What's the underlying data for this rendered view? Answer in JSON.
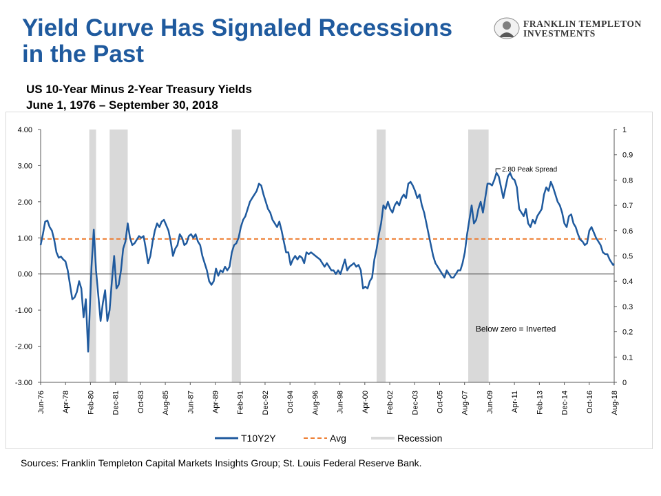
{
  "header": {
    "title_line1": "Yield Curve Has Signaled Recessions",
    "title_line2": "in the Past",
    "subtitle_line1": "US 10-Year Minus 2-Year Treasury Yields",
    "subtitle_line2": "June 1, 1976 – September 30, 2018"
  },
  "logo": {
    "line1": "FRANKLIN TEMPLETON",
    "line2": "INVESTMENTS",
    "icon": "franklin-portrait-icon"
  },
  "footer": {
    "sources": "Sources: Franklin Templeton Capital Markets Insights Group; St. Louis Federal Reserve Bank."
  },
  "colors": {
    "title": "#1f5a9e",
    "series": "#1f5a9e",
    "avg": "#ed7d31",
    "recession": "#d9d9d9",
    "zero_line": "#404040"
  },
  "chart_data": {
    "type": "line",
    "xlim": [
      "1976-06",
      "2018-09"
    ],
    "ylim": [
      -3,
      4
    ],
    "y_ticks": [
      "4.00",
      "3.00",
      "2.00",
      "1.00",
      "0.00",
      "-1.00",
      "-2.00",
      "-3.00"
    ],
    "y2lim": [
      0,
      1
    ],
    "y2_ticks": [
      "1",
      "0.9",
      "0.8",
      "0.7",
      "0.6",
      "0.5",
      "0.4",
      "0.3",
      "0.2",
      "0.1",
      "0"
    ],
    "x_tick_labels": [
      "Jun-76",
      "Apr-78",
      "Feb-80",
      "Dec-81",
      "Oct-83",
      "Aug-85",
      "Jun-87",
      "Apr-89",
      "Feb-91",
      "Dec-92",
      "Oct-94",
      "Aug-96",
      "Jun-98",
      "Apr-00",
      "Feb-02",
      "Dec-03",
      "Oct-05",
      "Aug-07",
      "Jun-09",
      "Apr-11",
      "Feb-13",
      "Dec-14",
      "Oct-16",
      "Aug-18"
    ],
    "legend": [
      "T10Y2Y",
      "Avg",
      "Recession"
    ],
    "legend_position": "bottom",
    "grid": false,
    "avg_value": 0.97,
    "recessions": [
      [
        "1980-01",
        "1980-07"
      ],
      [
        "1981-07",
        "1982-11"
      ],
      [
        "1990-07",
        "1991-03"
      ],
      [
        "2001-03",
        "2001-11"
      ],
      [
        "2007-12",
        "2009-06"
      ]
    ],
    "series": [
      {
        "name": "T10Y2Y",
        "points": [
          [
            "1976-06",
            0.8
          ],
          [
            "1976-08",
            1.1
          ],
          [
            "1976-10",
            1.45
          ],
          [
            "1976-12",
            1.48
          ],
          [
            "1977-02",
            1.3
          ],
          [
            "1977-04",
            1.2
          ],
          [
            "1977-06",
            0.95
          ],
          [
            "1977-08",
            0.6
          ],
          [
            "1977-10",
            0.45
          ],
          [
            "1977-12",
            0.48
          ],
          [
            "1978-02",
            0.4
          ],
          [
            "1978-04",
            0.35
          ],
          [
            "1978-06",
            0.1
          ],
          [
            "1978-08",
            -0.3
          ],
          [
            "1978-10",
            -0.7
          ],
          [
            "1978-12",
            -0.65
          ],
          [
            "1979-02",
            -0.5
          ],
          [
            "1979-04",
            -0.2
          ],
          [
            "1979-06",
            -0.4
          ],
          [
            "1979-08",
            -1.2
          ],
          [
            "1979-10",
            -0.7
          ],
          [
            "1979-12",
            -2.15
          ],
          [
            "1980-03",
            0.2
          ],
          [
            "1980-05",
            1.23
          ],
          [
            "1980-07",
            0.1
          ],
          [
            "1980-09",
            -0.6
          ],
          [
            "1980-11",
            -1.3
          ],
          [
            "1981-01",
            -0.8
          ],
          [
            "1981-03",
            -0.45
          ],
          [
            "1981-05",
            -1.3
          ],
          [
            "1981-07",
            -1.0
          ],
          [
            "1981-09",
            -0.2
          ],
          [
            "1981-11",
            0.5
          ],
          [
            "1982-01",
            -0.4
          ],
          [
            "1982-03",
            -0.3
          ],
          [
            "1982-05",
            0.1
          ],
          [
            "1982-07",
            0.7
          ],
          [
            "1982-09",
            0.9
          ],
          [
            "1982-11",
            1.4
          ],
          [
            "1983-01",
            1.0
          ],
          [
            "1983-03",
            0.8
          ],
          [
            "1983-05",
            0.85
          ],
          [
            "1983-07",
            0.95
          ],
          [
            "1983-09",
            1.05
          ],
          [
            "1983-11",
            1.0
          ],
          [
            "1984-01",
            1.05
          ],
          [
            "1984-03",
            0.7
          ],
          [
            "1984-05",
            0.3
          ],
          [
            "1984-07",
            0.5
          ],
          [
            "1984-09",
            0.9
          ],
          [
            "1984-11",
            1.2
          ],
          [
            "1985-01",
            1.4
          ],
          [
            "1985-03",
            1.3
          ],
          [
            "1985-05",
            1.45
          ],
          [
            "1985-07",
            1.5
          ],
          [
            "1985-09",
            1.35
          ],
          [
            "1985-11",
            1.2
          ],
          [
            "1986-01",
            0.9
          ],
          [
            "1986-03",
            0.5
          ],
          [
            "1986-05",
            0.7
          ],
          [
            "1986-07",
            0.8
          ],
          [
            "1986-09",
            1.1
          ],
          [
            "1986-11",
            1.0
          ],
          [
            "1987-01",
            0.8
          ],
          [
            "1987-03",
            0.85
          ],
          [
            "1987-05",
            1.05
          ],
          [
            "1987-07",
            1.1
          ],
          [
            "1987-09",
            1.0
          ],
          [
            "1987-11",
            1.1
          ],
          [
            "1988-01",
            0.9
          ],
          [
            "1988-03",
            0.8
          ],
          [
            "1988-05",
            0.5
          ],
          [
            "1988-07",
            0.3
          ],
          [
            "1988-09",
            0.1
          ],
          [
            "1988-11",
            -0.2
          ],
          [
            "1989-01",
            -0.3
          ],
          [
            "1989-03",
            -0.2
          ],
          [
            "1989-05",
            0.15
          ],
          [
            "1989-07",
            -0.05
          ],
          [
            "1989-09",
            0.1
          ],
          [
            "1989-11",
            0.05
          ],
          [
            "1990-01",
            0.2
          ],
          [
            "1990-03",
            0.1
          ],
          [
            "1990-05",
            0.2
          ],
          [
            "1990-07",
            0.6
          ],
          [
            "1990-09",
            0.8
          ],
          [
            "1990-11",
            0.85
          ],
          [
            "1991-01",
            1.0
          ],
          [
            "1991-03",
            1.3
          ],
          [
            "1991-05",
            1.5
          ],
          [
            "1991-07",
            1.6
          ],
          [
            "1991-09",
            1.8
          ],
          [
            "1991-11",
            2.0
          ],
          [
            "1992-01",
            2.1
          ],
          [
            "1992-03",
            2.2
          ],
          [
            "1992-05",
            2.3
          ],
          [
            "1992-07",
            2.5
          ],
          [
            "1992-09",
            2.45
          ],
          [
            "1992-11",
            2.2
          ],
          [
            "1993-01",
            2.0
          ],
          [
            "1993-03",
            1.8
          ],
          [
            "1993-05",
            1.7
          ],
          [
            "1993-07",
            1.5
          ],
          [
            "1993-09",
            1.4
          ],
          [
            "1993-11",
            1.3
          ],
          [
            "1994-01",
            1.45
          ],
          [
            "1994-03",
            1.2
          ],
          [
            "1994-05",
            0.9
          ],
          [
            "1994-07",
            0.6
          ],
          [
            "1994-09",
            0.6
          ],
          [
            "1994-11",
            0.25
          ],
          [
            "1995-01",
            0.4
          ],
          [
            "1995-03",
            0.5
          ],
          [
            "1995-05",
            0.4
          ],
          [
            "1995-07",
            0.5
          ],
          [
            "1995-09",
            0.45
          ],
          [
            "1995-11",
            0.3
          ],
          [
            "1996-01",
            0.6
          ],
          [
            "1996-03",
            0.55
          ],
          [
            "1996-05",
            0.6
          ],
          [
            "1996-07",
            0.55
          ],
          [
            "1996-09",
            0.5
          ],
          [
            "1996-11",
            0.45
          ],
          [
            "1997-01",
            0.4
          ],
          [
            "1997-03",
            0.3
          ],
          [
            "1997-05",
            0.2
          ],
          [
            "1997-07",
            0.3
          ],
          [
            "1997-09",
            0.2
          ],
          [
            "1997-11",
            0.1
          ],
          [
            "1998-01",
            0.1
          ],
          [
            "1998-03",
            0.0
          ],
          [
            "1998-05",
            0.1
          ],
          [
            "1998-07",
            0.0
          ],
          [
            "1998-09",
            0.2
          ],
          [
            "1998-11",
            0.4
          ],
          [
            "1999-01",
            0.1
          ],
          [
            "1999-03",
            0.2
          ],
          [
            "1999-05",
            0.25
          ],
          [
            "1999-07",
            0.3
          ],
          [
            "1999-09",
            0.2
          ],
          [
            "1999-11",
            0.25
          ],
          [
            "2000-01",
            0.1
          ],
          [
            "2000-03",
            -0.4
          ],
          [
            "2000-05",
            -0.35
          ],
          [
            "2000-07",
            -0.4
          ],
          [
            "2000-09",
            -0.2
          ],
          [
            "2000-11",
            -0.1
          ],
          [
            "2001-01",
            0.4
          ],
          [
            "2001-03",
            0.7
          ],
          [
            "2001-05",
            1.1
          ],
          [
            "2001-07",
            1.4
          ],
          [
            "2001-09",
            1.9
          ],
          [
            "2001-11",
            1.8
          ],
          [
            "2002-01",
            2.0
          ],
          [
            "2002-03",
            1.8
          ],
          [
            "2002-05",
            1.7
          ],
          [
            "2002-07",
            1.9
          ],
          [
            "2002-09",
            2.0
          ],
          [
            "2002-11",
            1.9
          ],
          [
            "2003-01",
            2.1
          ],
          [
            "2003-03",
            2.2
          ],
          [
            "2003-05",
            2.1
          ],
          [
            "2003-07",
            2.5
          ],
          [
            "2003-09",
            2.55
          ],
          [
            "2003-11",
            2.45
          ],
          [
            "2004-01",
            2.3
          ],
          [
            "2004-03",
            2.1
          ],
          [
            "2004-05",
            2.2
          ],
          [
            "2004-07",
            1.9
          ],
          [
            "2004-09",
            1.7
          ],
          [
            "2004-11",
            1.4
          ],
          [
            "2005-01",
            1.1
          ],
          [
            "2005-03",
            0.8
          ],
          [
            "2005-05",
            0.5
          ],
          [
            "2005-07",
            0.3
          ],
          [
            "2005-09",
            0.2
          ],
          [
            "2005-11",
            0.1
          ],
          [
            "2006-01",
            0.0
          ],
          [
            "2006-03",
            -0.1
          ],
          [
            "2006-05",
            0.1
          ],
          [
            "2006-07",
            0.0
          ],
          [
            "2006-09",
            -0.1
          ],
          [
            "2006-11",
            -0.1
          ],
          [
            "2007-01",
            0.0
          ],
          [
            "2007-03",
            0.1
          ],
          [
            "2007-05",
            0.1
          ],
          [
            "2007-07",
            0.3
          ],
          [
            "2007-09",
            0.6
          ],
          [
            "2007-11",
            1.1
          ],
          [
            "2008-01",
            1.5
          ],
          [
            "2008-03",
            1.9
          ],
          [
            "2008-05",
            1.4
          ],
          [
            "2008-07",
            1.5
          ],
          [
            "2008-09",
            1.8
          ],
          [
            "2008-11",
            2.0
          ],
          [
            "2009-01",
            1.7
          ],
          [
            "2009-03",
            2.1
          ],
          [
            "2009-05",
            2.5
          ],
          [
            "2009-07",
            2.5
          ],
          [
            "2009-09",
            2.45
          ],
          [
            "2009-11",
            2.6
          ],
          [
            "2010-01",
            2.8
          ],
          [
            "2010-03",
            2.7
          ],
          [
            "2010-05",
            2.4
          ],
          [
            "2010-07",
            2.1
          ],
          [
            "2010-09",
            2.4
          ],
          [
            "2010-11",
            2.7
          ],
          [
            "2011-01",
            2.8
          ],
          [
            "2011-03",
            2.65
          ],
          [
            "2011-05",
            2.6
          ],
          [
            "2011-07",
            2.4
          ],
          [
            "2011-09",
            1.8
          ],
          [
            "2011-11",
            1.7
          ],
          [
            "2012-01",
            1.6
          ],
          [
            "2012-03",
            1.8
          ],
          [
            "2012-05",
            1.4
          ],
          [
            "2012-07",
            1.3
          ],
          [
            "2012-09",
            1.5
          ],
          [
            "2012-11",
            1.4
          ],
          [
            "2013-01",
            1.6
          ],
          [
            "2013-03",
            1.7
          ],
          [
            "2013-05",
            1.8
          ],
          [
            "2013-07",
            2.2
          ],
          [
            "2013-09",
            2.4
          ],
          [
            "2013-11",
            2.3
          ],
          [
            "2014-01",
            2.55
          ],
          [
            "2014-03",
            2.4
          ],
          [
            "2014-05",
            2.2
          ],
          [
            "2014-07",
            2.0
          ],
          [
            "2014-09",
            1.9
          ],
          [
            "2014-11",
            1.7
          ],
          [
            "2015-01",
            1.4
          ],
          [
            "2015-03",
            1.3
          ],
          [
            "2015-05",
            1.6
          ],
          [
            "2015-07",
            1.65
          ],
          [
            "2015-09",
            1.4
          ],
          [
            "2015-11",
            1.3
          ],
          [
            "2016-01",
            1.1
          ],
          [
            "2016-03",
            0.95
          ],
          [
            "2016-05",
            0.9
          ],
          [
            "2016-07",
            0.8
          ],
          [
            "2016-09",
            0.85
          ],
          [
            "2016-11",
            1.2
          ],
          [
            "2017-01",
            1.3
          ],
          [
            "2017-03",
            1.15
          ],
          [
            "2017-05",
            1.0
          ],
          [
            "2017-07",
            0.9
          ],
          [
            "2017-09",
            0.8
          ],
          [
            "2017-11",
            0.6
          ],
          [
            "2018-01",
            0.55
          ],
          [
            "2018-03",
            0.55
          ],
          [
            "2018-05",
            0.4
          ],
          [
            "2018-07",
            0.3
          ],
          [
            "2018-08",
            0.25
          ],
          [
            "2018-09",
            0.28
          ]
        ]
      }
    ],
    "annotations": [
      {
        "text": "2.80 Peak Spread",
        "x": "2010-01",
        "y": 2.8
      },
      {
        "text": "Below zero = Inverted",
        "x": "2011-06",
        "y": -1.6
      }
    ]
  }
}
